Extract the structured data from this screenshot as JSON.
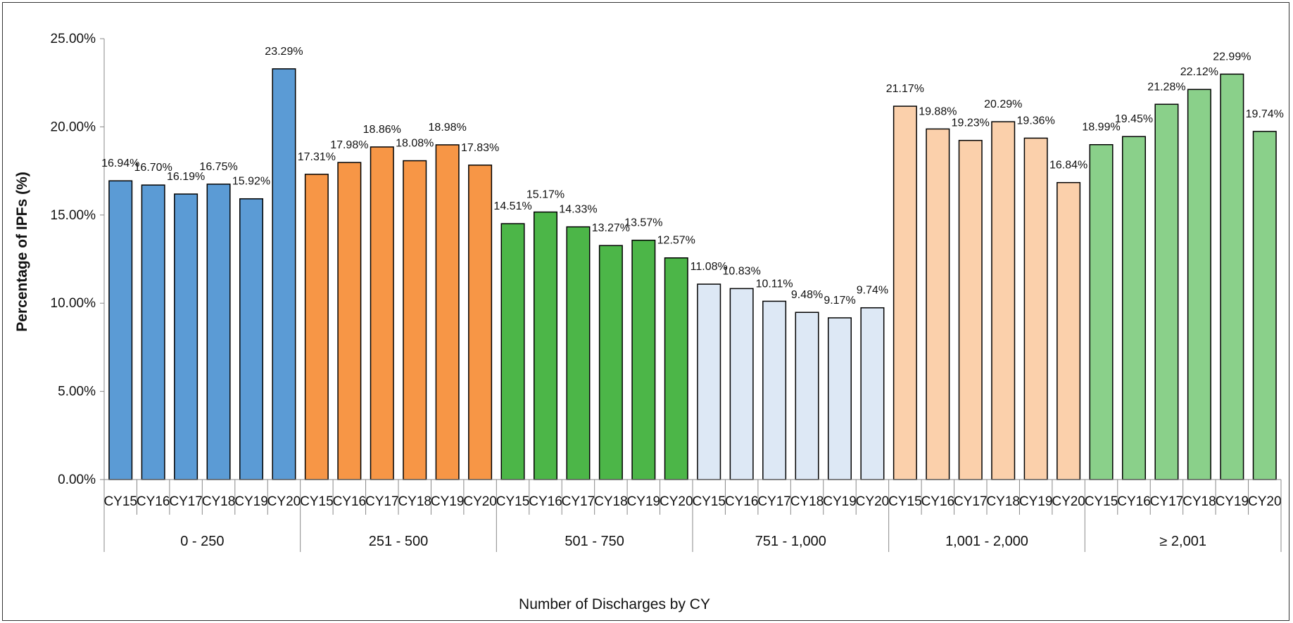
{
  "chart_data": {
    "type": "bar",
    "title": "",
    "xlabel": "Number of Discharges by CY",
    "ylabel": "Percentage of IPFs (%)",
    "ylim": [
      0,
      25
    ],
    "yticks": [
      "0.00%",
      "5.00%",
      "10.00%",
      "15.00%",
      "20.00%",
      "25.00%"
    ],
    "grid": false,
    "legend": "none",
    "categories": [
      "CY15",
      "CY16",
      "CY17",
      "CY18",
      "CY19",
      "CY20"
    ],
    "groups": [
      {
        "label": "0 - 250",
        "color": "#5b9bd5",
        "values": [
          16.94,
          16.7,
          16.19,
          16.75,
          15.92,
          23.29
        ],
        "labels": [
          "16.94%",
          "16.70%",
          "16.19%",
          "16.75%",
          "15.92%",
          "23.29%"
        ]
      },
      {
        "label": "251 - 500",
        "color": "#f79646",
        "values": [
          17.31,
          17.98,
          18.86,
          18.08,
          18.98,
          17.83
        ],
        "labels": [
          "17.31%",
          "17.98%",
          "18.86%",
          "18.08%",
          "18.98%",
          "17.83%"
        ]
      },
      {
        "label": "501 - 750",
        "color": "#4cb648",
        "values": [
          14.51,
          15.17,
          14.33,
          13.27,
          13.57,
          12.57
        ],
        "labels": [
          "14.51%",
          "15.17%",
          "14.33%",
          "13.27%",
          "13.57%",
          "12.57%"
        ]
      },
      {
        "label": "751 - 1,000",
        "color": "#dde8f5",
        "values": [
          11.08,
          10.83,
          10.11,
          9.48,
          9.17,
          9.74
        ],
        "labels": [
          "11.08%",
          "10.83%",
          "10.11%",
          "9.48%",
          "9.17%",
          "9.74%"
        ]
      },
      {
        "label": "1,001 - 2,000",
        "color": "#fbd0ab",
        "values": [
          21.17,
          19.88,
          19.23,
          20.29,
          19.36,
          16.84
        ],
        "labels": [
          "21.17%",
          "19.88%",
          "19.23%",
          "20.29%",
          "19.36%",
          "16.84%"
        ]
      },
      {
        "label": "≥ 2,001",
        "color": "#8ad08a",
        "values": [
          18.99,
          19.45,
          21.28,
          22.12,
          22.99,
          19.74
        ],
        "labels": [
          "18.99%",
          "19.45%",
          "21.28%",
          "22.12%",
          "22.99%",
          "19.74%"
        ]
      }
    ]
  }
}
